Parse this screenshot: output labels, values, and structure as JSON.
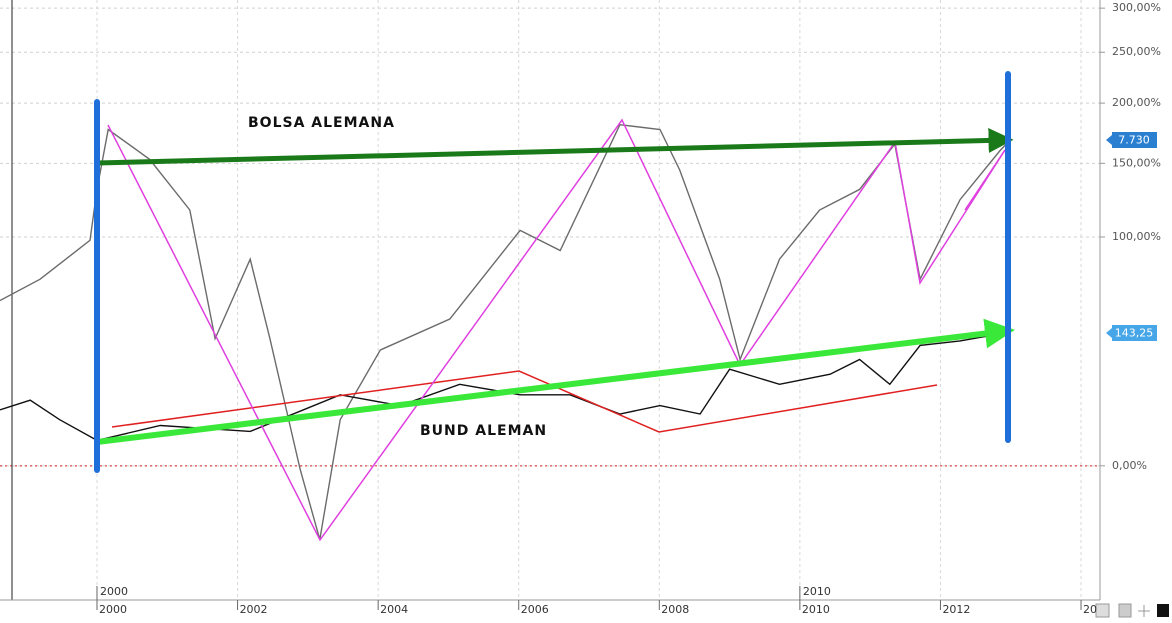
{
  "chart_data": {
    "type": "line",
    "yscale": "log-growth",
    "ylim": [
      -33.4,
      310
    ],
    "yticks": [
      {
        "value": 0,
        "label": "0,00%"
      },
      {
        "value": 100,
        "label": "100,00%"
      },
      {
        "value": 150,
        "label": "150,00%"
      },
      {
        "value": 200,
        "label": "200,00%"
      },
      {
        "value": 250,
        "label": "250,00%"
      },
      {
        "value": 300,
        "label": "300,00%"
      }
    ],
    "xlim": [
      1998.62,
      2014.27
    ],
    "xticks": [
      2000,
      2002,
      2004,
      2006,
      2008,
      2010,
      2012,
      {
        "value": 2014,
        "label": "20"
      }
    ],
    "xticks_major": [
      2000,
      2010
    ],
    "grid": true,
    "reference_line": 0,
    "reference_color": "#d62020",
    "annotations": [
      "BOLSA ALEMANA",
      "BUND ALEMAN"
    ],
    "price_labels": [
      "7.730",
      "143,25"
    ],
    "series": [
      {
        "color": "#6b6b6b",
        "x": [
          1998.62,
          1999.19,
          1999.9,
          2000.0,
          2000.16,
          2000.75,
          2001.32,
          2001.68,
          2002.18,
          2002.46,
          2002.89,
          2003.17,
          2003.46,
          2004.03,
          2005.02,
          2006.02,
          2006.59,
          2007.44,
          2008.01,
          2008.29,
          2008.86,
          2009.15,
          2009.71,
          2010.28,
          2010.85,
          2011.35,
          2011.71,
          2012.28,
          2012.85,
          2012.99
        ],
        "values": [
          65,
          76,
          98,
          131,
          177,
          153,
          117,
          47,
          87,
          47,
          -1,
          -20,
          15,
          42,
          56,
          104,
          92,
          181,
          177,
          145,
          76,
          38,
          87,
          117,
          131,
          165,
          76,
          124,
          160,
          168
        ]
      },
      {
        "color": "#111111",
        "x": [
          1998.62,
          1999.05,
          1999.47,
          2000.0,
          2000.9,
          2002.18,
          2002.89,
          2003.46,
          2004.31,
          2005.16,
          2006.02,
          2006.73,
          2007.44,
          2008.01,
          2008.58,
          2009.0,
          2009.71,
          2010.43,
          2010.85,
          2011.28,
          2011.71,
          2012.28,
          2012.99
        ],
        "values": [
          18.5,
          22,
          15,
          8,
          13,
          11,
          18,
          24,
          20,
          28,
          24,
          24,
          17,
          20,
          17,
          34,
          28,
          32,
          38,
          28,
          44,
          46,
          50
        ]
      }
    ]
  }
}
